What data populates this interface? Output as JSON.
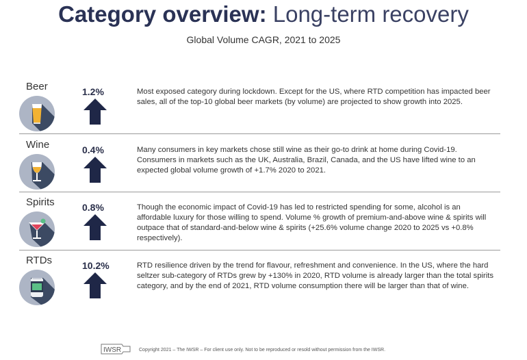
{
  "header": {
    "title_bold": "Category overview:",
    "title_light": "Long-term recovery",
    "subtitle": "Global Volume CAGR, 2021 to 2025"
  },
  "categories": [
    {
      "name": "Beer",
      "value": "1.2%",
      "icon": "beer-glass-icon",
      "description": "Most exposed category during lockdown. Except for the US, where RTD competition has impacted beer sales, all of the top-10 global beer markets (by volume) are projected to show growth into 2025."
    },
    {
      "name": "Wine",
      "value": "0.4%",
      "icon": "wine-glass-icon",
      "description": "Many consumers in key markets chose still wine as their go-to drink at home during Covid-19. Consumers in markets such as the UK, Australia, Brazil, Canada, and the US have lifted wine to an expected global volume growth of +1.7% 2020 to 2021."
    },
    {
      "name": "Spirits",
      "value": "0.8%",
      "icon": "cocktail-glass-icon",
      "description": "Though the economic impact of Covid-19 has led to restricted spending for some, alcohol is an affordable luxury for those willing to spend. Volume % growth of premium-and-above wine & spirits will outpace that of standard-and-below wine & spirits (+25.6% volume change 2020 to 2025 vs +0.8% respectively)."
    },
    {
      "name": "RTDs",
      "value": "10.2%",
      "icon": "can-icon",
      "description": "RTD resilience driven by the trend for flavour, refreshment and convenience. In the US, where the hard seltzer sub-category of RTDs grew by +130% in 2020, RTD volume is already larger than the total spirits category, and by the end of 2021, RTD volume consumption there will be larger than that of wine."
    }
  ],
  "footer": {
    "logo_text": "IWSR",
    "copyright": "Copyright 2021 – The IWSR – For client use only. Not to be reproduced or resold without permission from the IWSR."
  },
  "colors": {
    "title": "#2a3255",
    "arrow": "#1f2747",
    "icon_circle": "#adb5c5",
    "icon_shadow": "#3c4a63"
  }
}
